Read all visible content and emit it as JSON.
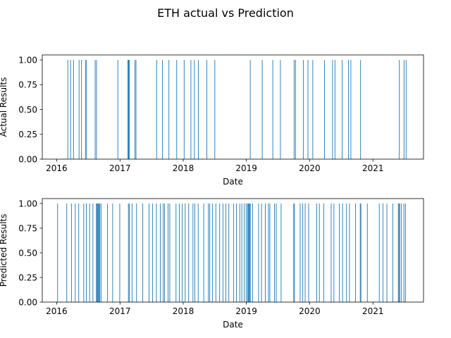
{
  "figure": {
    "title": "ETH actual vs Prediction"
  },
  "chart_data": [
    {
      "type": "bar",
      "xlabel": "Date",
      "ylabel": "Actual Results",
      "xlim": [
        "2015-10-10",
        "2021-10-20"
      ],
      "ylim": [
        0,
        1.05
      ],
      "xticks": [
        "2016",
        "2017",
        "2018",
        "2019",
        "2020",
        "2021"
      ],
      "yticks": [
        "0.00",
        "0.25",
        "0.50",
        "0.75",
        "1.00"
      ],
      "bar_color": "#1f77b4",
      "grid": false,
      "x": [
        "2016-03-04",
        "2016-03-20",
        "2016-04-06",
        "2016-05-08",
        "2016-05-22",
        "2016-06-14",
        "2016-06-20",
        "2016-08-09",
        "2016-08-17",
        "2016-12-18",
        "2017-02-14",
        "2017-02-18",
        "2017-02-22",
        "2017-03-27",
        "2017-04-02",
        "2017-07-30",
        "2017-09-02",
        "2017-10-09",
        "2017-11-23",
        "2018-01-05",
        "2018-02-13",
        "2018-03-05",
        "2018-03-28",
        "2018-05-16",
        "2018-07-01",
        "2019-01-22",
        "2019-04-01",
        "2019-06-01",
        "2019-07-15",
        "2019-10-02",
        "2019-10-10",
        "2019-11-25",
        "2019-12-21",
        "2020-01-18",
        "2020-03-26",
        "2020-05-11",
        "2020-05-25",
        "2020-07-06",
        "2020-08-11",
        "2020-08-25",
        "2020-10-20",
        "2021-06-01",
        "2021-06-28",
        "2021-07-10"
      ],
      "values": [
        1,
        1,
        1,
        1,
        1,
        1,
        1,
        1,
        1,
        1,
        1,
        1,
        1,
        1,
        1,
        1,
        1,
        1,
        1,
        1,
        1,
        1,
        1,
        1,
        1,
        1,
        1,
        1,
        1,
        1,
        1,
        1,
        1,
        1,
        1,
        1,
        1,
        1,
        1,
        1,
        1,
        1,
        1,
        1
      ]
    },
    {
      "type": "bar",
      "xlabel": "Date",
      "ylabel": "Predicted Results",
      "xlim": [
        "2015-10-10",
        "2021-10-20"
      ],
      "ylim": [
        0,
        1.05
      ],
      "xticks": [
        "2016",
        "2017",
        "2018",
        "2019",
        "2020",
        "2021"
      ],
      "yticks": [
        "0.00",
        "0.25",
        "0.50",
        "0.75",
        "1.00"
      ],
      "bar_color": "#1f77b4",
      "grid": false,
      "x": [
        "2016-01-05",
        "2016-02-27",
        "2016-03-25",
        "2016-04-16",
        "2016-05-06",
        "2016-06-04",
        "2016-06-19",
        "2016-07-08",
        "2016-07-27",
        "2016-08-16",
        "2016-08-20",
        "2016-08-24",
        "2016-08-28",
        "2016-09-01",
        "2016-09-05",
        "2016-09-12",
        "2016-10-19",
        "2016-11-18",
        "2016-12-29",
        "2017-02-17",
        "2017-02-22",
        "2017-03-10",
        "2017-04-05",
        "2017-05-11",
        "2017-06-16",
        "2017-07-07",
        "2017-07-29",
        "2017-08-20",
        "2017-09-06",
        "2017-09-14",
        "2017-10-04",
        "2017-10-14",
        "2017-11-19",
        "2017-12-08",
        "2017-12-25",
        "2018-01-11",
        "2018-01-31",
        "2018-02-25",
        "2018-03-08",
        "2018-03-27",
        "2018-04-28",
        "2018-05-25",
        "2018-06-02",
        "2018-06-18",
        "2018-07-07",
        "2018-07-29",
        "2018-08-17",
        "2018-09-03",
        "2018-09-20",
        "2018-10-18",
        "2018-11-03",
        "2018-11-22",
        "2018-12-04",
        "2018-12-18",
        "2018-12-29",
        "2019-01-06",
        "2019-01-10",
        "2019-01-14",
        "2019-01-18",
        "2019-01-22",
        "2019-02-04",
        "2019-03-11",
        "2019-03-28",
        "2019-04-19",
        "2019-05-07",
        "2019-05-15",
        "2019-06-11",
        "2019-06-21",
        "2019-07-19",
        "2019-09-30",
        "2019-10-04",
        "2019-11-06",
        "2019-11-21",
        "2019-12-05",
        "2019-12-25",
        "2020-02-10",
        "2020-02-25",
        "2020-03-21",
        "2020-05-03",
        "2020-05-19",
        "2020-06-20",
        "2020-07-08",
        "2020-07-31",
        "2020-08-17",
        "2020-09-21",
        "2020-10-18",
        "2020-10-22",
        "2020-11-28",
        "2021-02-05",
        "2021-02-26",
        "2021-03-21",
        "2021-04-24",
        "2021-05-26",
        "2021-05-30",
        "2021-06-03",
        "2021-06-13",
        "2021-06-27",
        "2021-07-06"
      ],
      "values": [
        1,
        1,
        1,
        1,
        1,
        1,
        1,
        1,
        1,
        1,
        1,
        1,
        1,
        1,
        1,
        1,
        1,
        1,
        1,
        1,
        1,
        1,
        1,
        1,
        1,
        1,
        1,
        1,
        1,
        1,
        1,
        1,
        1,
        1,
        1,
        1,
        1,
        1,
        1,
        1,
        1,
        1,
        1,
        1,
        1,
        1,
        1,
        1,
        1,
        1,
        1,
        1,
        1,
        1,
        1,
        1,
        1,
        1,
        1,
        1,
        1,
        1,
        1,
        1,
        1,
        1,
        1,
        1,
        1,
        1,
        1,
        1,
        1,
        1,
        1,
        1,
        1,
        1,
        1,
        1,
        1,
        1,
        1,
        1,
        1,
        1,
        1,
        1,
        1,
        1,
        1,
        1,
        1,
        1,
        1,
        1,
        1,
        1
      ]
    }
  ]
}
